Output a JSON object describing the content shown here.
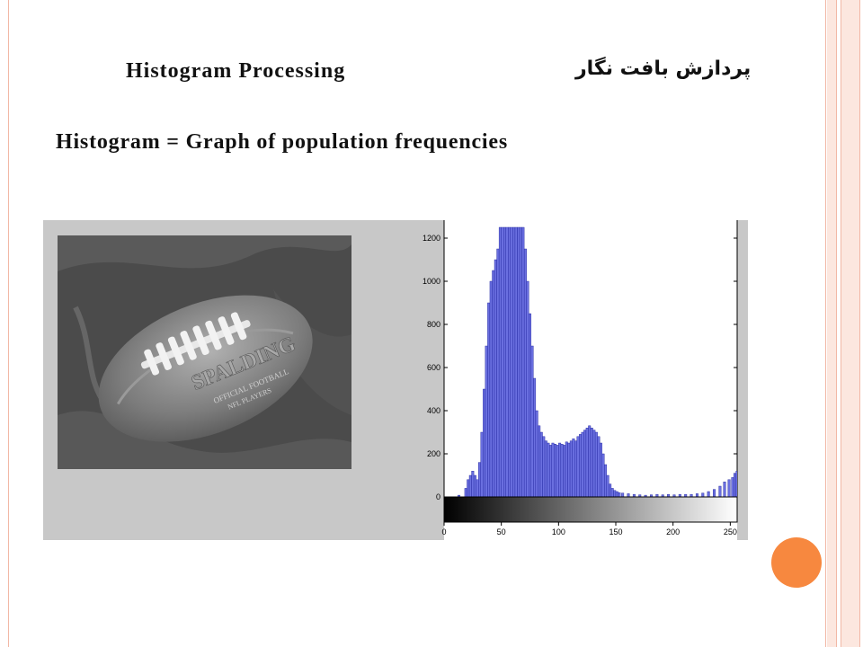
{
  "slide": {
    "title_en": "Histogram Processing",
    "title_fa": "پردازش بافت نگار",
    "subtitle": "Histogram = Graph of population frequencies"
  },
  "photo": {
    "ball_text_1": "SPALDING",
    "ball_text_2": "OFFICIAL FOOTBALL",
    "ball_text_3": "NFL PLAYERS"
  },
  "colors": {
    "accent_border": "#f2b8a6",
    "orange_dot": "#f7883f",
    "bar_fill": "#6a6fe0",
    "figure_bg": "#c8c8c8"
  },
  "chart_data": {
    "type": "bar",
    "xlim": [
      0,
      256
    ],
    "ylim": [
      0,
      1250
    ],
    "x_ticks": [
      0,
      50,
      100,
      150,
      200,
      250
    ],
    "y_ticks": [
      0,
      200,
      400,
      600,
      800,
      1000,
      1200
    ],
    "grid": false,
    "bins": [
      [
        12,
        8
      ],
      [
        18,
        40
      ],
      [
        20,
        80
      ],
      [
        22,
        100
      ],
      [
        24,
        120
      ],
      [
        26,
        100
      ],
      [
        28,
        80
      ],
      [
        30,
        160
      ],
      [
        32,
        300
      ],
      [
        34,
        500
      ],
      [
        36,
        700
      ],
      [
        38,
        900
      ],
      [
        40,
        1000
      ],
      [
        42,
        1050
      ],
      [
        44,
        1100
      ],
      [
        46,
        1150
      ],
      [
        48,
        1250
      ],
      [
        50,
        1250
      ],
      [
        52,
        1250
      ],
      [
        54,
        1250
      ],
      [
        56,
        1250
      ],
      [
        58,
        1250
      ],
      [
        60,
        1250
      ],
      [
        62,
        1250
      ],
      [
        64,
        1250
      ],
      [
        66,
        1250
      ],
      [
        68,
        1250
      ],
      [
        70,
        1150
      ],
      [
        72,
        1000
      ],
      [
        74,
        850
      ],
      [
        76,
        700
      ],
      [
        78,
        550
      ],
      [
        80,
        400
      ],
      [
        82,
        330
      ],
      [
        84,
        300
      ],
      [
        86,
        280
      ],
      [
        88,
        260
      ],
      [
        90,
        250
      ],
      [
        92,
        240
      ],
      [
        94,
        250
      ],
      [
        96,
        245
      ],
      [
        98,
        240
      ],
      [
        100,
        250
      ],
      [
        102,
        245
      ],
      [
        104,
        240
      ],
      [
        106,
        255
      ],
      [
        108,
        250
      ],
      [
        110,
        260
      ],
      [
        112,
        270
      ],
      [
        114,
        260
      ],
      [
        116,
        280
      ],
      [
        118,
        290
      ],
      [
        120,
        300
      ],
      [
        122,
        310
      ],
      [
        124,
        320
      ],
      [
        126,
        330
      ],
      [
        128,
        320
      ],
      [
        130,
        310
      ],
      [
        132,
        300
      ],
      [
        134,
        280
      ],
      [
        136,
        250
      ],
      [
        138,
        200
      ],
      [
        140,
        150
      ],
      [
        142,
        100
      ],
      [
        144,
        60
      ],
      [
        146,
        40
      ],
      [
        148,
        30
      ],
      [
        150,
        25
      ],
      [
        152,
        20
      ],
      [
        155,
        18
      ],
      [
        160,
        15
      ],
      [
        165,
        12
      ],
      [
        170,
        10
      ],
      [
        175,
        8
      ],
      [
        180,
        10
      ],
      [
        185,
        12
      ],
      [
        190,
        10
      ],
      [
        195,
        12
      ],
      [
        200,
        10
      ],
      [
        205,
        12
      ],
      [
        210,
        12
      ],
      [
        215,
        12
      ],
      [
        220,
        15
      ],
      [
        225,
        18
      ],
      [
        230,
        25
      ],
      [
        235,
        35
      ],
      [
        240,
        50
      ],
      [
        244,
        70
      ],
      [
        248,
        80
      ],
      [
        251,
        90
      ],
      [
        253,
        110
      ],
      [
        255,
        120
      ]
    ]
  }
}
